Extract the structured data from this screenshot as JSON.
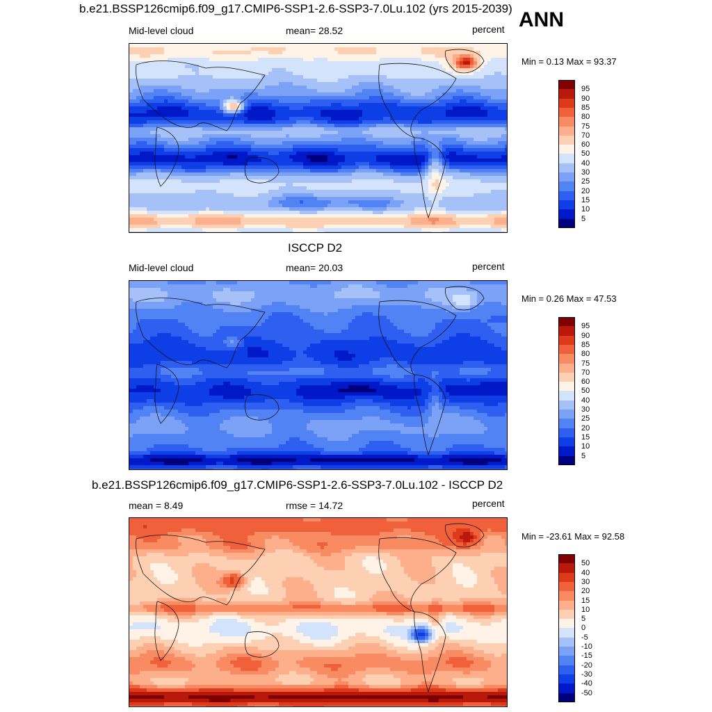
{
  "season_label": "ANN",
  "chart_data": [
    {
      "type": "heatmap",
      "title": "b.e21.BSSP126cmip6.f09_g17.CMIP6-SSP1-2.6-SSP3-7.0Lu.102 (yrs 2015-2039)",
      "left_label": "Mid-level cloud",
      "center_label": "mean=  28.52",
      "units": "percent",
      "minmax": "Min =   0.13 Max =  93.37",
      "variable": "Mid-level cloud",
      "mean": 28.52,
      "min": 0.13,
      "max": 93.37,
      "levels": [
        "5",
        "10",
        "15",
        "20",
        "25",
        "30",
        "40",
        "50",
        "60",
        "70",
        "75",
        "80",
        "85",
        "90",
        "95"
      ],
      "colors": [
        "#00007f",
        "#0019c8",
        "#0e3ee6",
        "#2f5ff0",
        "#5283f4",
        "#7ba2f6",
        "#a6c1f7",
        "#d3e3fb",
        "#fff2e6",
        "#fdd0b3",
        "#fcaf8a",
        "#f98b62",
        "#f0603a",
        "#dd3a1c",
        "#b8190a",
        "#7f0000"
      ],
      "pattern": "model"
    },
    {
      "type": "heatmap",
      "title": "ISCCP D2",
      "left_label": "Mid-level cloud",
      "center_label": "mean=  20.03",
      "units": "percent",
      "minmax": "Min =   0.26 Max =  47.53",
      "variable": "Mid-level cloud",
      "mean": 20.03,
      "min": 0.26,
      "max": 47.53,
      "levels": [
        "5",
        "10",
        "15",
        "20",
        "25",
        "30",
        "40",
        "50",
        "60",
        "70",
        "75",
        "80",
        "85",
        "90",
        "95"
      ],
      "colors": [
        "#00007f",
        "#0019c8",
        "#0e3ee6",
        "#2f5ff0",
        "#5283f4",
        "#7ba2f6",
        "#a6c1f7",
        "#d3e3fb",
        "#fff2e6",
        "#fdd0b3",
        "#fcaf8a",
        "#f98b62",
        "#f0603a",
        "#dd3a1c",
        "#b8190a",
        "#7f0000"
      ],
      "pattern": "obs"
    },
    {
      "type": "heatmap",
      "title": "b.e21.BSSP126cmip6.f09_g17.CMIP6-SSP1-2.6-SSP3-7.0Lu.102 - ISCCP D2",
      "left_label": "mean =   8.49",
      "center_label": "rmse =  14.72",
      "units": "percent",
      "minmax": "Min = -23.61 Max =  92.58",
      "mean": 8.49,
      "rmse": 14.72,
      "min": -23.61,
      "max": 92.58,
      "levels": [
        "-50",
        "-40",
        "-30",
        "-20",
        "-15",
        "-10",
        "-5",
        "0",
        "5",
        "10",
        "15",
        "20",
        "30",
        "40",
        "50"
      ],
      "colors": [
        "#00007f",
        "#0019c8",
        "#0e3ee6",
        "#2f5ff0",
        "#5283f4",
        "#7ba2f6",
        "#a6c1f7",
        "#d3e3fb",
        "#fff2e6",
        "#fdd0b3",
        "#fcaf8a",
        "#f98b62",
        "#f0603a",
        "#dd3a1c",
        "#b8190a",
        "#7f0000"
      ],
      "pattern": "diff"
    }
  ]
}
